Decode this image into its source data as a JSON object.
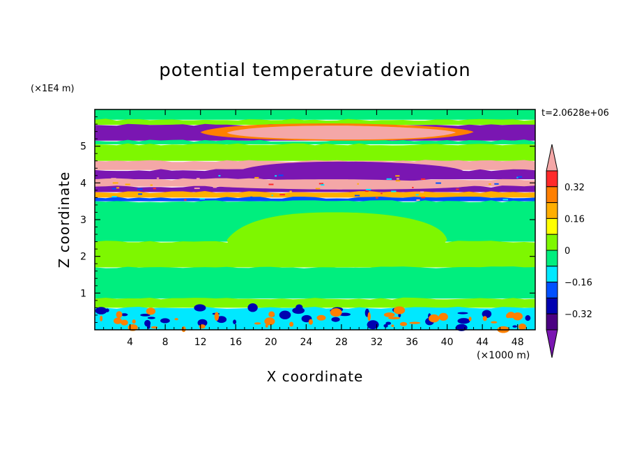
{
  "chart_data": {
    "type": "heatmap",
    "title": "potential temperature deviation",
    "xlabel": "X coordinate",
    "ylabel": "Z coordinate",
    "x_unit_label": "(×1000 m)",
    "y_unit_label": "(×1E4 m)",
    "time_label": "t=2.0628e+06",
    "xlim": [
      0,
      50
    ],
    "ylim": [
      0,
      6
    ],
    "x_ticks": [
      4,
      8,
      12,
      16,
      20,
      24,
      28,
      32,
      36,
      40,
      44,
      48
    ],
    "y_ticks": [
      1,
      2,
      3,
      4,
      5
    ],
    "colorbar": {
      "levels": [
        -0.4,
        -0.32,
        -0.24,
        -0.16,
        -0.08,
        0,
        0.08,
        0.16,
        0.24,
        0.32,
        0.4
      ],
      "labels": [
        "0.32",
        "0.16",
        "0",
        "−0.16",
        "−0.32"
      ],
      "label_values": [
        0.32,
        0.16,
        0,
        -0.16,
        -0.32
      ],
      "colors_top_to_bottom": [
        "#f4a7a7",
        "#ff2a2a",
        "#ff7f00",
        "#ffae00",
        "#ffff00",
        "#7ef700",
        "#00ee7e",
        "#00e8ff",
        "#0050ff",
        "#0000b0",
        "#4b0082",
        "#7a16b2"
      ],
      "extend": "both"
    },
    "bands": [
      {
        "z0": 5.72,
        "z1": 6.0,
        "value": 0.0,
        "color": "#00ee7e"
      },
      {
        "z0": 5.58,
        "z1": 5.72,
        "value": 0.04,
        "color": "#7ef700"
      },
      {
        "z0": 5.15,
        "z1": 5.58,
        "value": -0.4,
        "color": "#7a16b2"
      },
      {
        "z0": 5.05,
        "z1": 5.15,
        "value": 0.0,
        "color": "#00ee7e"
      },
      {
        "z0": 4.6,
        "z1": 5.05,
        "value": 0.04,
        "color": "#7ef700"
      },
      {
        "z0": 4.35,
        "z1": 4.6,
        "value": 0.4,
        "color": "#f4a7a7"
      },
      {
        "z0": 4.1,
        "z1": 4.35,
        "value": -0.4,
        "color": "#7a16b2"
      },
      {
        "z0": 3.9,
        "z1": 4.1,
        "value": 0.4,
        "color": "#f4a7a7"
      },
      {
        "z0": 3.75,
        "z1": 3.9,
        "value": -0.4,
        "color": "#7a16b2"
      },
      {
        "z0": 3.6,
        "z1": 3.75,
        "value": 0.1,
        "color": "#ffae00"
      },
      {
        "z0": 3.5,
        "z1": 3.6,
        "value": -0.16,
        "color": "#0050ff"
      },
      {
        "z0": 2.4,
        "z1": 3.5,
        "value": 0.0,
        "color": "#00ee7e"
      },
      {
        "z0": 1.7,
        "z1": 2.4,
        "value": 0.04,
        "color": "#7ef700"
      },
      {
        "z0": 0.85,
        "z1": 1.7,
        "value": 0.0,
        "color": "#00ee7e"
      },
      {
        "z0": 0.6,
        "z1": 0.85,
        "value": 0.04,
        "color": "#7ef700"
      },
      {
        "z0": 0.0,
        "z1": 0.6,
        "value": -0.08,
        "color": "#00e8ff"
      }
    ],
    "features": [
      {
        "desc": "warm cap",
        "x0": 15,
        "x1": 41,
        "z0": 5.18,
        "z1": 5.56,
        "value": 0.4,
        "color": "#f4a7a7"
      },
      {
        "desc": "warm cap rim",
        "x0": 12,
        "x1": 43,
        "z0": 5.15,
        "z1": 5.62,
        "value": 0.24,
        "color": "#ff7f00"
      },
      {
        "desc": "cold core",
        "x0": 16,
        "x1": 42,
        "z0": 4.02,
        "z1": 4.58,
        "value": -0.4,
        "color": "#7a16b2"
      },
      {
        "desc": "warm layer center",
        "x0": 12,
        "x1": 44,
        "z0": 3.82,
        "z1": 4.1,
        "value": 0.4,
        "color": "#f4a7a7"
      },
      {
        "desc": "mid green patch",
        "x0": 15,
        "x1": 40,
        "z0": 1.7,
        "z1": 3.2,
        "value": 0.04,
        "color": "#7ef700"
      },
      {
        "desc": "near-surface cold blobs",
        "x0": 0,
        "x1": 50,
        "z0": 0.05,
        "z1": 0.62,
        "value": -0.32,
        "color": "#0000b0"
      },
      {
        "desc": "near-surface warm blobs",
        "x0": 0,
        "x1": 50,
        "z0": 0.0,
        "z1": 0.55,
        "value": 0.24,
        "color": "#ff7f00"
      }
    ]
  }
}
